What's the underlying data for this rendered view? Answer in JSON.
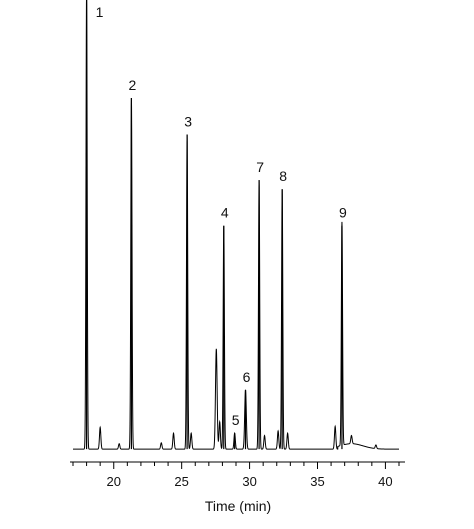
{
  "chart_data": {
    "type": "line",
    "title": "",
    "xlabel": "Time (min)",
    "ylabel": "",
    "xlim": [
      17,
      41
    ],
    "ylim": [
      0,
      100
    ],
    "grid": false,
    "x_ticks": [
      20,
      25,
      30,
      35,
      40
    ],
    "x_tick_labels": [
      "20",
      "25",
      "30",
      "35",
      "40"
    ],
    "line_color": "#000000",
    "baseline": 1.5,
    "peaks": [
      {
        "label": "1",
        "time": 18.0,
        "height": 100
      },
      {
        "label": "2",
        "time": 21.3,
        "height": 77
      },
      {
        "label": "3",
        "time": 25.4,
        "height": 69
      },
      {
        "label": "4",
        "time": 28.1,
        "height": 49
      },
      {
        "label": "5",
        "time": 28.9,
        "height": 3.5
      },
      {
        "label": "6",
        "time": 29.7,
        "height": 13
      },
      {
        "label": "7",
        "time": 30.7,
        "height": 59
      },
      {
        "label": "8",
        "time": 32.4,
        "height": 57
      },
      {
        "label": "9",
        "time": 36.8,
        "height": 49
      }
    ],
    "unlabeled_peaks": [
      {
        "time": 19.0,
        "height": 4.8
      },
      {
        "time": 20.4,
        "height": 1.2
      },
      {
        "time": 23.5,
        "height": 1.4
      },
      {
        "time": 24.4,
        "height": 3.5
      },
      {
        "time": 25.7,
        "height": 3.5
      },
      {
        "time": 27.55,
        "height": 22
      },
      {
        "time": 27.8,
        "height": 6
      },
      {
        "time": 31.1,
        "height": 3.0
      },
      {
        "time": 32.1,
        "height": 4.0
      },
      {
        "time": 32.8,
        "height": 3.5
      },
      {
        "time": 36.3,
        "height": 5.0
      },
      {
        "time": 37.5,
        "height": 1.8
      },
      {
        "time": 39.3,
        "height": 0.8
      }
    ]
  }
}
